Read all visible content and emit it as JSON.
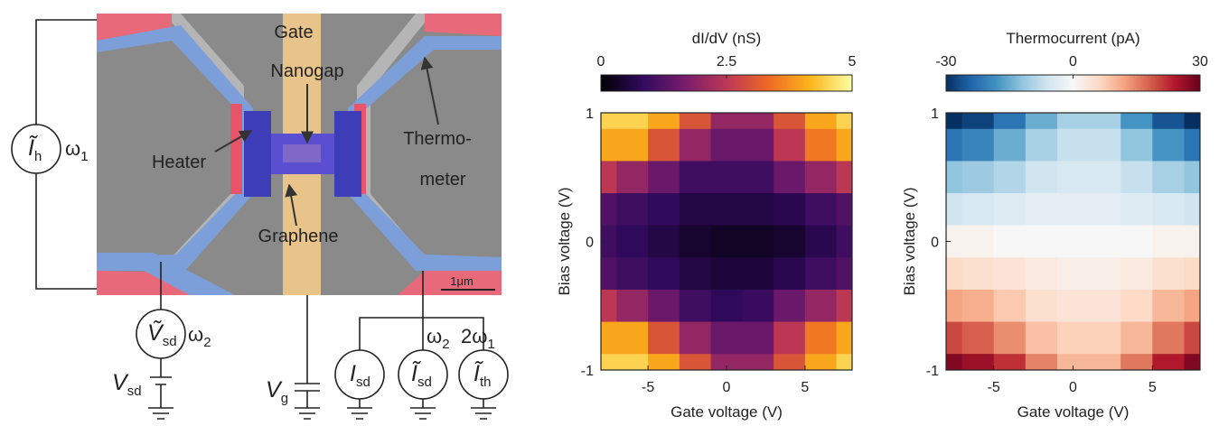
{
  "diagram": {
    "labels": {
      "gate": "Gate",
      "nanogap": "Nanogap",
      "heater": "Heater",
      "thermometer": [
        "Thermo-",
        "meter"
      ],
      "graphene": "Graphene",
      "scale_bar": "1μm"
    },
    "sources": [
      {
        "symbol": "Ĩ",
        "sub": "h",
        "freq": "ω",
        "freq_sub": "1"
      },
      {
        "symbol": "Ṽ",
        "sub": "sd",
        "freq": "ω",
        "freq_sub": "2"
      },
      {
        "symbol": "I",
        "sub": "sd"
      },
      {
        "symbol": "Ĩ",
        "sub": "sd",
        "freq": "ω",
        "freq_sub": "2"
      },
      {
        "symbol": "Ĩ",
        "sub": "th",
        "freq": "2ω",
        "freq_sub": "1"
      }
    ],
    "voltages": [
      {
        "symbol": "V",
        "sub": "sd"
      },
      {
        "symbol": "V",
        "sub": "g"
      }
    ]
  },
  "chart_data": [
    {
      "type": "heatmap",
      "title": "dI/dV (nS)",
      "x": [
        -8,
        -6,
        -4,
        -2,
        0,
        2,
        4,
        6,
        8
      ],
      "y": [
        1,
        0.75,
        0.5,
        0.25,
        0,
        -0.25,
        -0.5,
        -0.75,
        -1
      ],
      "values": [
        [
          4.5,
          4.5,
          4,
          3,
          2,
          2,
          3,
          4,
          4.5
        ],
        [
          4,
          4,
          3,
          2,
          1.5,
          1.5,
          2.5,
          3.5,
          4
        ],
        [
          2.5,
          2,
          1.5,
          1,
          1,
          1,
          1.5,
          2,
          2.5
        ],
        [
          1.2,
          1,
          0.8,
          0.6,
          0.6,
          0.6,
          0.7,
          1,
          1.2
        ],
        [
          1,
          0.8,
          0.6,
          0.4,
          0.3,
          0.3,
          0.4,
          0.7,
          1
        ],
        [
          1.2,
          1,
          0.8,
          0.6,
          0.5,
          0.5,
          0.7,
          1,
          1.2
        ],
        [
          2.5,
          2,
          1.5,
          1,
          0.8,
          0.9,
          1.5,
          2,
          2.5
        ],
        [
          4,
          4,
          3,
          2,
          1.5,
          1.5,
          2.5,
          3.5,
          4
        ],
        [
          4.5,
          4.5,
          4,
          3,
          2,
          2,
          3,
          4,
          4.5
        ]
      ],
      "xlim": [
        -8,
        8
      ],
      "ylim": [
        -1,
        1
      ],
      "xticks": [
        -5,
        0,
        5
      ],
      "yticks": [
        -1,
        0,
        1
      ],
      "xlabel": "Gate voltage (V)",
      "ylabel": "Bias voltage (V)",
      "colorbar": {
        "lim": [
          0,
          5
        ],
        "ticks": [
          0,
          2.5,
          5
        ],
        "colors": [
          "#000004",
          "#320a5e",
          "#781c6d",
          "#bc3754",
          "#ed6925",
          "#fbb61a",
          "#fcffa4"
        ]
      }
    },
    {
      "type": "heatmap",
      "title": "Thermocurrent (pA)",
      "x": [
        -8,
        -6,
        -4,
        -2,
        0,
        2,
        4,
        6,
        8
      ],
      "y": [
        1,
        0.75,
        0.5,
        0.25,
        0,
        -0.25,
        -0.5,
        -0.75,
        -1
      ],
      "values": [
        [
          -30,
          -28,
          -22,
          -15,
          -10,
          -10,
          -18,
          -26,
          -30
        ],
        [
          -22,
          -20,
          -15,
          -10,
          -7,
          -7,
          -12,
          -18,
          -22
        ],
        [
          -12,
          -11,
          -9,
          -6,
          -5,
          -5,
          -7,
          -10,
          -12
        ],
        [
          -6,
          -5,
          -4,
          -3,
          -3,
          -3,
          -4,
          -5,
          -6
        ],
        [
          1,
          1,
          0,
          0,
          0,
          0,
          0,
          1,
          1
        ],
        [
          6,
          5,
          4,
          3,
          2,
          2,
          3,
          5,
          6
        ],
        [
          12,
          11,
          8,
          5,
          4,
          4,
          6,
          10,
          12
        ],
        [
          20,
          18,
          14,
          9,
          7,
          7,
          10,
          16,
          20
        ],
        [
          28,
          26,
          22,
          15,
          10,
          10,
          16,
          24,
          28
        ]
      ],
      "xlim": [
        -8,
        8
      ],
      "ylim": [
        -1,
        1
      ],
      "xticks": [
        -5,
        0,
        5
      ],
      "yticks": [
        -1,
        0,
        1
      ],
      "xlabel": "Gate voltage (V)",
      "ylabel": "Bias voltage (V)",
      "colorbar": {
        "lim": [
          -30,
          30
        ],
        "ticks": [
          -30,
          0,
          30
        ],
        "colors": [
          "#053061",
          "#2166ac",
          "#4393c3",
          "#92c5de",
          "#d1e5f0",
          "#f7f7f7",
          "#fddbc7",
          "#f4a582",
          "#d6604d",
          "#b2182b",
          "#67001f"
        ]
      }
    }
  ]
}
